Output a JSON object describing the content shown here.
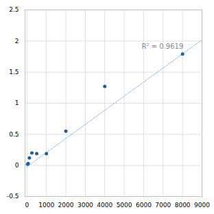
{
  "chart_data": {
    "type": "scatter",
    "series": [
      {
        "type": "scatter",
        "color": "#1f5fa6",
        "x": [
          31.25,
          62.5,
          125,
          250,
          500,
          1000,
          2000,
          4000,
          8000
        ],
        "values": [
          0.02,
          0.03,
          0.12,
          0.2,
          0.19,
          0.19,
          0.55,
          1.27,
          1.79
        ]
      },
      {
        "type": "line",
        "line_style": "dotted",
        "color": "#5b9bd5",
        "x": [
          0,
          9000
        ],
        "values": [
          -0.02,
          2.02
        ]
      }
    ],
    "annotations": [
      {
        "text": "R² = 0.9619",
        "x": 5900,
        "y": 1.88
      }
    ],
    "xlim": [
      -100,
      9000
    ],
    "xticks": [
      0,
      1000,
      2000,
      3000,
      4000,
      5000,
      6000,
      7000,
      8000,
      9000
    ],
    "ylim": [
      -0.5,
      2.5
    ],
    "yticks": [
      -0.5,
      0,
      0.5,
      1,
      1.5,
      2,
      2.5
    ],
    "grid": true
  }
}
